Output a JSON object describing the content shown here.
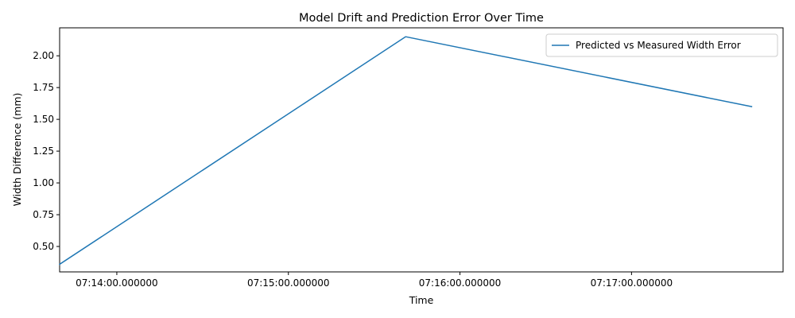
{
  "chart_data": {
    "type": "line",
    "title": "Model Drift and Prediction Error Over Time",
    "xlabel": "Time",
    "ylabel": "Width Difference (mm)",
    "x_axis_type": "time",
    "xlim": [
      "07:13:40.000000",
      "07:17:53.000000"
    ],
    "ylim": [
      0.3,
      2.22
    ],
    "x_ticks": [
      "07:14:00.000000",
      "07:15:00.000000",
      "07:16:00.000000",
      "07:17:00.000000"
    ],
    "y_ticks": [
      0.5,
      0.75,
      1.0,
      1.25,
      1.5,
      1.75,
      2.0
    ],
    "y_tick_labels": [
      "0.50",
      "0.75",
      "1.00",
      "1.25",
      "1.50",
      "1.75",
      "2.00"
    ],
    "series": [
      {
        "name": "Predicted vs Measured Width Error",
        "color": "#1f77b4",
        "x": [
          "07:13:40.000000",
          "07:15:41.000000",
          "07:17:42.000000"
        ],
        "y": [
          0.36,
          2.15,
          1.6
        ]
      }
    ],
    "grid": false,
    "legend_position": "top-right"
  }
}
